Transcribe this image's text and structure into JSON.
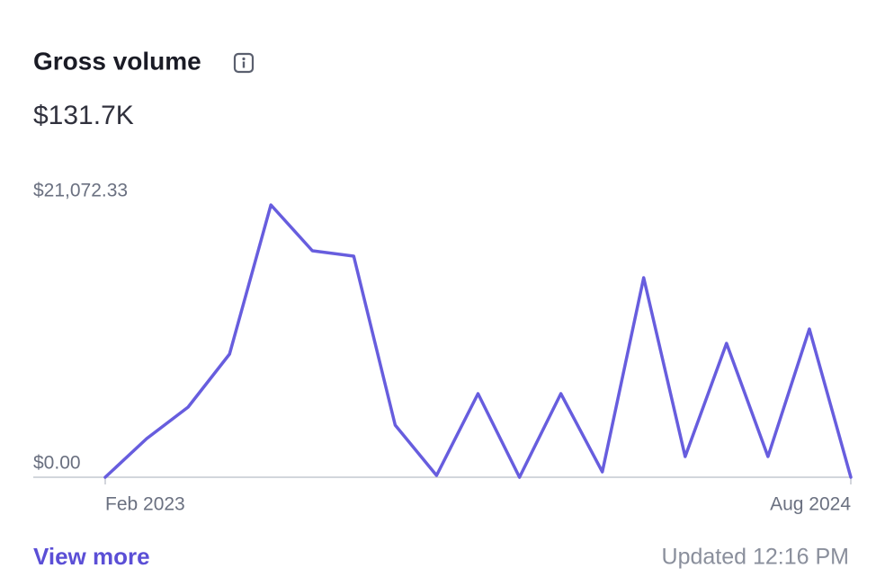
{
  "chart_data": {
    "type": "line",
    "title": "Gross volume",
    "subtitle": "$131.7K",
    "categories": [
      "Feb 2023",
      null,
      null,
      null,
      null,
      null,
      null,
      null,
      null,
      null,
      null,
      null,
      null,
      null,
      null,
      null,
      null,
      null,
      "Aug 2024"
    ],
    "values": [
      0,
      2990,
      5425,
      9528,
      21072.33,
      17526,
      17108,
      4034,
      139,
      6468,
      0,
      6468,
      417,
      15439,
      1600,
      10362,
      1600,
      11475,
      0
    ],
    "color": "#675dde",
    "ylim": [
      0,
      21072.33
    ],
    "yticks": [
      {
        "value": 0,
        "label": "$0.00"
      },
      {
        "value": 21072.33,
        "label": "$21,072.33"
      }
    ]
  },
  "footer": {
    "link": "View more",
    "updated": "Updated 12:16 PM"
  }
}
